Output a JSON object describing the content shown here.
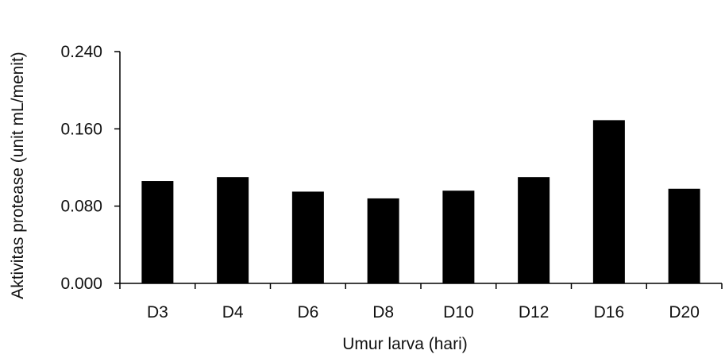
{
  "chart_data": {
    "type": "bar",
    "categories": [
      "D3",
      "D4",
      "D6",
      "D8",
      "D10",
      "D12",
      "D16",
      "D20"
    ],
    "values": [
      0.106,
      0.11,
      0.095,
      0.088,
      0.096,
      0.11,
      0.169,
      0.098
    ],
    "title": "",
    "xlabel": "Umur larva (hari)",
    "ylabel": "Aktivitas protease (unit mL/menit)",
    "ylim": [
      0,
      0.24
    ],
    "yticks": [
      "0.000",
      "0.080",
      "0.160",
      "0.240"
    ],
    "grid": false,
    "legend": "none",
    "colors": {
      "bar": "#000000",
      "axis": "#000000",
      "text": "#111111",
      "background": "#ffffff"
    }
  }
}
